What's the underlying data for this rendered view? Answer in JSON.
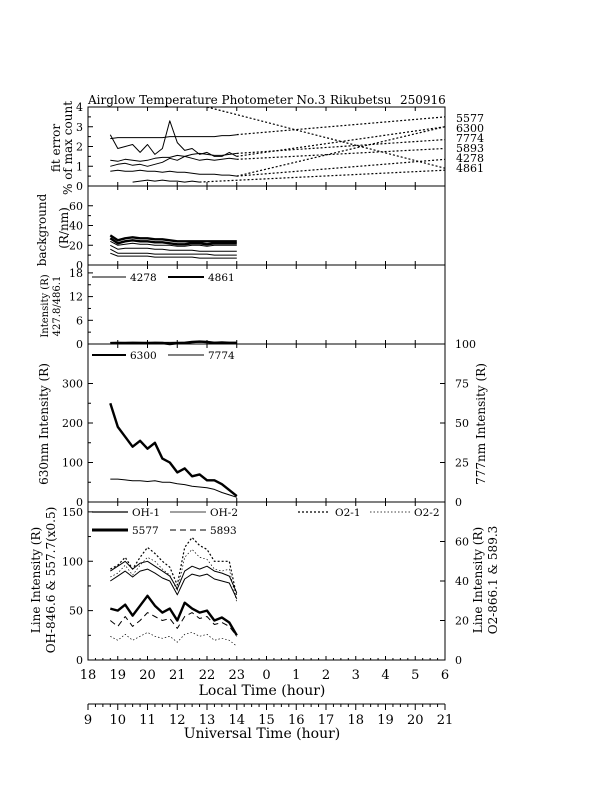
{
  "title": {
    "name": "Airglow Temperature Photometer No.3",
    "station": "Rikubetsu",
    "date": "250916"
  },
  "colors": {
    "ink": "#000000",
    "background": "#ffffff"
  },
  "chart_data": [
    {
      "id": "fit_error",
      "type": "line",
      "ylabel": [
        "fit error",
        "% of max count"
      ],
      "ylim": [
        0,
        4
      ],
      "yticks": [
        "0",
        "1",
        "2",
        "3",
        "4"
      ],
      "x": [
        18.75,
        19.0,
        19.25,
        19.5,
        19.75,
        20.0,
        20.25,
        20.5,
        20.75,
        21.0,
        21.25,
        21.5,
        21.75,
        22.0,
        22.25,
        22.5,
        22.75,
        23.0
      ],
      "series": [
        {
          "name": "5577",
          "values": [
            2.4,
            2.45,
            2.45,
            2.45,
            2.45,
            2.45,
            2.45,
            2.45,
            2.5,
            2.5,
            2.5,
            2.5,
            2.5,
            2.5,
            2.5,
            2.55,
            2.55,
            2.6
          ],
          "style": "solid-thin",
          "dotted_end": 3.5
        },
        {
          "name": "6300",
          "values": [
            2.6,
            1.9,
            2.0,
            2.1,
            1.7,
            2.1,
            1.6,
            1.9,
            3.3,
            2.2,
            1.8,
            1.9,
            1.6,
            1.7,
            1.5,
            1.5,
            1.7,
            1.5
          ],
          "style": "solid-thin",
          "dotted_end": 3.0
        },
        {
          "name": "7774",
          "values": [
            1.3,
            1.25,
            1.35,
            1.3,
            1.25,
            1.3,
            1.4,
            1.45,
            1.45,
            1.55,
            1.5,
            1.6,
            1.65,
            1.6,
            1.55,
            1.55,
            1.6,
            1.65
          ],
          "style": "solid-thin",
          "dotted_end": 2.35
        },
        {
          "name": "5893",
          "values": [
            1.0,
            1.1,
            1.15,
            1.05,
            1.1,
            1.0,
            1.1,
            1.2,
            1.4,
            1.3,
            1.5,
            1.4,
            1.3,
            1.35,
            1.3,
            1.35,
            1.4,
            1.35
          ],
          "style": "solid-thin",
          "dotted_end": 1.9
        },
        {
          "name": "4278",
          "values": [
            0.75,
            0.8,
            0.75,
            0.75,
            0.8,
            0.75,
            0.75,
            0.7,
            0.75,
            0.7,
            0.7,
            0.65,
            0.6,
            0.6,
            0.6,
            0.55,
            0.55,
            0.5
          ],
          "style": "solid-thin",
          "dotted_end": 1.35
        },
        {
          "name": "4861",
          "values": [
            null,
            null,
            null,
            0.2,
            0.25,
            0.3,
            0.25,
            0.3,
            0.25,
            0.25,
            0.2,
            0.25,
            0.2,
            null,
            null,
            null,
            null,
            null
          ],
          "style": "solid-thin",
          "dotted_end": 0.8
        }
      ],
      "dotted_from": [
        {
          "name": "5577",
          "from_x": 22.0,
          "from_y": 4.0,
          "to_y": 0.9
        },
        {
          "name": "6300",
          "from_x": 23.0,
          "from_y": 0.5,
          "to_y": 3.0
        }
      ]
    },
    {
      "id": "background",
      "type": "line",
      "ylabel": [
        "background",
        "(R/nm)"
      ],
      "ylim": [
        0,
        80
      ],
      "yticks": [
        "0",
        "20",
        "40",
        "60"
      ],
      "x": [
        18.75,
        19.0,
        19.25,
        19.5,
        19.75,
        20.0,
        20.25,
        20.5,
        20.75,
        21.0,
        21.25,
        21.5,
        21.75,
        22.0,
        22.25,
        22.5,
        22.75,
        23.0
      ],
      "series": [
        {
          "name": "bg-1",
          "values": [
            30,
            25,
            27,
            28,
            27,
            27,
            26,
            26,
            25,
            24,
            24,
            24,
            24,
            24,
            24,
            24,
            24,
            24
          ],
          "style": "bold"
        },
        {
          "name": "bg-2",
          "values": [
            27,
            22,
            24,
            25,
            24,
            24,
            23,
            23,
            22,
            21,
            21,
            22,
            22,
            21,
            22,
            22,
            22,
            22
          ],
          "style": "bold"
        },
        {
          "name": "bg-3",
          "values": [
            24,
            20,
            21,
            22,
            21,
            21,
            20,
            20,
            20,
            19,
            19,
            20,
            20,
            19,
            20,
            20,
            20,
            20
          ],
          "style": "solid-thin"
        },
        {
          "name": "bg-4",
          "values": [
            20,
            16,
            17,
            17,
            17,
            17,
            16,
            16,
            15,
            15,
            15,
            15,
            14,
            14,
            14,
            14,
            14,
            14
          ],
          "style": "solid-thin"
        },
        {
          "name": "bg-5",
          "values": [
            16,
            12,
            12,
            12,
            12,
            12,
            11,
            11,
            11,
            11,
            11,
            11,
            11,
            11,
            10,
            10,
            10,
            10
          ],
          "style": "solid-thin"
        },
        {
          "name": "bg-6",
          "values": [
            12,
            9,
            9,
            9,
            9,
            9,
            8,
            8,
            8,
            8,
            8,
            8,
            7,
            7,
            7,
            7,
            7,
            7
          ],
          "style": "solid-thin"
        }
      ]
    },
    {
      "id": "blue_intensity",
      "type": "line",
      "ylabel": [
        "Intensity (R)",
        "427.8/486.1"
      ],
      "ylim": [
        0,
        20
      ],
      "yticks": [
        "0",
        "6",
        "12",
        "18"
      ],
      "legend": [
        "4278",
        "4861"
      ],
      "x": [
        18.75,
        19.0,
        19.25,
        19.5,
        19.75,
        20.0,
        20.25,
        20.5,
        20.75,
        21.0,
        21.25,
        21.5,
        21.75,
        22.0,
        22.25,
        22.5,
        22.75,
        23.0
      ],
      "series": [
        {
          "name": "4278",
          "values": [
            0.4,
            0.4,
            0.45,
            0.4,
            0.4,
            0.45,
            0.4,
            0.4,
            0.4,
            0.45,
            0.4,
            0.4,
            0.45,
            0.5,
            0.45,
            0.4,
            0.4,
            0.4
          ],
          "style": "solid-thin"
        },
        {
          "name": "4861",
          "values": [
            0.2,
            0.25,
            0.2,
            0.3,
            0.25,
            0.2,
            0.3,
            0.25,
            -0.2,
            0.2,
            0.3,
            0.5,
            0.6,
            0.5,
            0.3,
            0.4,
            0.3,
            0.3
          ],
          "style": "bold"
        }
      ]
    },
    {
      "id": "red_intensity",
      "type": "line",
      "ylabel_left": "630nm Intensity (R)",
      "ylabel_right": "777nm Intensity (R)",
      "ylim": [
        0,
        400
      ],
      "yticks": [
        "0",
        "100",
        "200",
        "300"
      ],
      "ylim_right": [
        0,
        100
      ],
      "yticks_right": [
        "0",
        "25",
        "50",
        "75",
        "100"
      ],
      "legend": [
        "6300",
        "7774"
      ],
      "x": [
        18.75,
        19.0,
        19.25,
        19.5,
        19.75,
        20.0,
        20.25,
        20.5,
        20.75,
        21.0,
        21.25,
        21.5,
        21.75,
        22.0,
        22.25,
        22.5,
        22.75,
        23.0
      ],
      "series": [
        {
          "name": "6300",
          "values": [
            250,
            190,
            165,
            140,
            155,
            135,
            150,
            110,
            100,
            75,
            85,
            65,
            70,
            55,
            55,
            45,
            30,
            15
          ],
          "style": "bold",
          "axis": "left"
        },
        {
          "name": "7774",
          "values": [
            14.5,
            14.5,
            14,
            13.5,
            13.5,
            13,
            13.5,
            12.5,
            12.5,
            11.5,
            11,
            10,
            9.5,
            9,
            8,
            6,
            4.5,
            3
          ],
          "style": "solid-thin",
          "axis": "right"
        }
      ]
    },
    {
      "id": "line_intensity",
      "type": "line",
      "ylabel_left": [
        "Line Intensity (R)",
        "OH-846.6 & 557.7(x0.5)"
      ],
      "ylabel_right": [
        "Line Intensity (R)",
        "O2-866.1 & 589.3"
      ],
      "ylim": [
        0,
        160
      ],
      "yticks": [
        "0",
        "50",
        "100",
        "150"
      ],
      "ylim_right": [
        0,
        80
      ],
      "yticks_right": [
        "0",
        "20",
        "40",
        "60"
      ],
      "legend": [
        "OH-1",
        "OH-2",
        "O2-1",
        "O2-2",
        "5577",
        "5893"
      ],
      "x": [
        18.75,
        19.0,
        19.25,
        19.5,
        19.75,
        20.0,
        20.25,
        20.5,
        20.75,
        21.0,
        21.25,
        21.5,
        21.75,
        22.0,
        22.25,
        22.5,
        22.75,
        23.0
      ],
      "series": [
        {
          "name": "OH-1",
          "values": [
            90,
            95,
            100,
            92,
            98,
            100,
            95,
            90,
            85,
            72,
            90,
            95,
            92,
            95,
            90,
            88,
            85,
            68
          ],
          "style": "solid-thin",
          "axis": "left"
        },
        {
          "name": "OH-2",
          "values": [
            80,
            85,
            90,
            84,
            90,
            92,
            88,
            83,
            80,
            66,
            82,
            87,
            85,
            87,
            82,
            80,
            78,
            62
          ],
          "style": "solid-thin",
          "axis": "left"
        },
        {
          "name": "O2-1",
          "values": [
            46,
            48,
            52,
            46,
            52,
            57,
            54,
            50,
            47,
            38,
            57,
            62,
            58,
            56,
            50,
            50,
            50,
            32
          ],
          "style": "dotted",
          "axis": "right"
        },
        {
          "name": "O2-2",
          "values": [
            42,
            44,
            48,
            43,
            48,
            52,
            50,
            46,
            43,
            35,
            52,
            56,
            52,
            51,
            46,
            45,
            46,
            29
          ],
          "style": "dotted-fine",
          "axis": "right"
        },
        {
          "name": "5577",
          "values": [
            52,
            50,
            56,
            45,
            55,
            65,
            55,
            48,
            52,
            40,
            58,
            52,
            48,
            50,
            40,
            43,
            38,
            25
          ],
          "style": "bold",
          "axis": "left"
        },
        {
          "name": "5893",
          "values": [
            20,
            17,
            22,
            17,
            20,
            24,
            22,
            20,
            21,
            16,
            22,
            24,
            21,
            22,
            18,
            19,
            17,
            12
          ],
          "style": "dashed",
          "axis": "right"
        },
        {
          "name": "extra-1",
          "values": [
            12,
            10,
            13,
            10,
            12,
            14,
            12,
            11,
            12,
            9,
            13,
            14,
            12,
            13,
            10,
            11,
            10,
            7
          ],
          "style": "dotted-fine",
          "axis": "right"
        }
      ]
    }
  ],
  "right_labels": [
    "5577",
    "6300",
    "7774",
    "5893",
    "4278",
    "4861"
  ],
  "x_axis_local": {
    "label": "Local Time (hour)",
    "ticks": [
      "18",
      "19",
      "20",
      "21",
      "22",
      "23",
      "0",
      "1",
      "2",
      "3",
      "4",
      "5",
      "6"
    ],
    "range": [
      18,
      30
    ]
  },
  "x_axis_ut": {
    "label": "Universal Time (hour)",
    "ticks": [
      "9",
      "10",
      "11",
      "12",
      "13",
      "14",
      "15",
      "16",
      "17",
      "18",
      "19",
      "20",
      "21"
    ],
    "range": [
      9,
      21
    ]
  }
}
